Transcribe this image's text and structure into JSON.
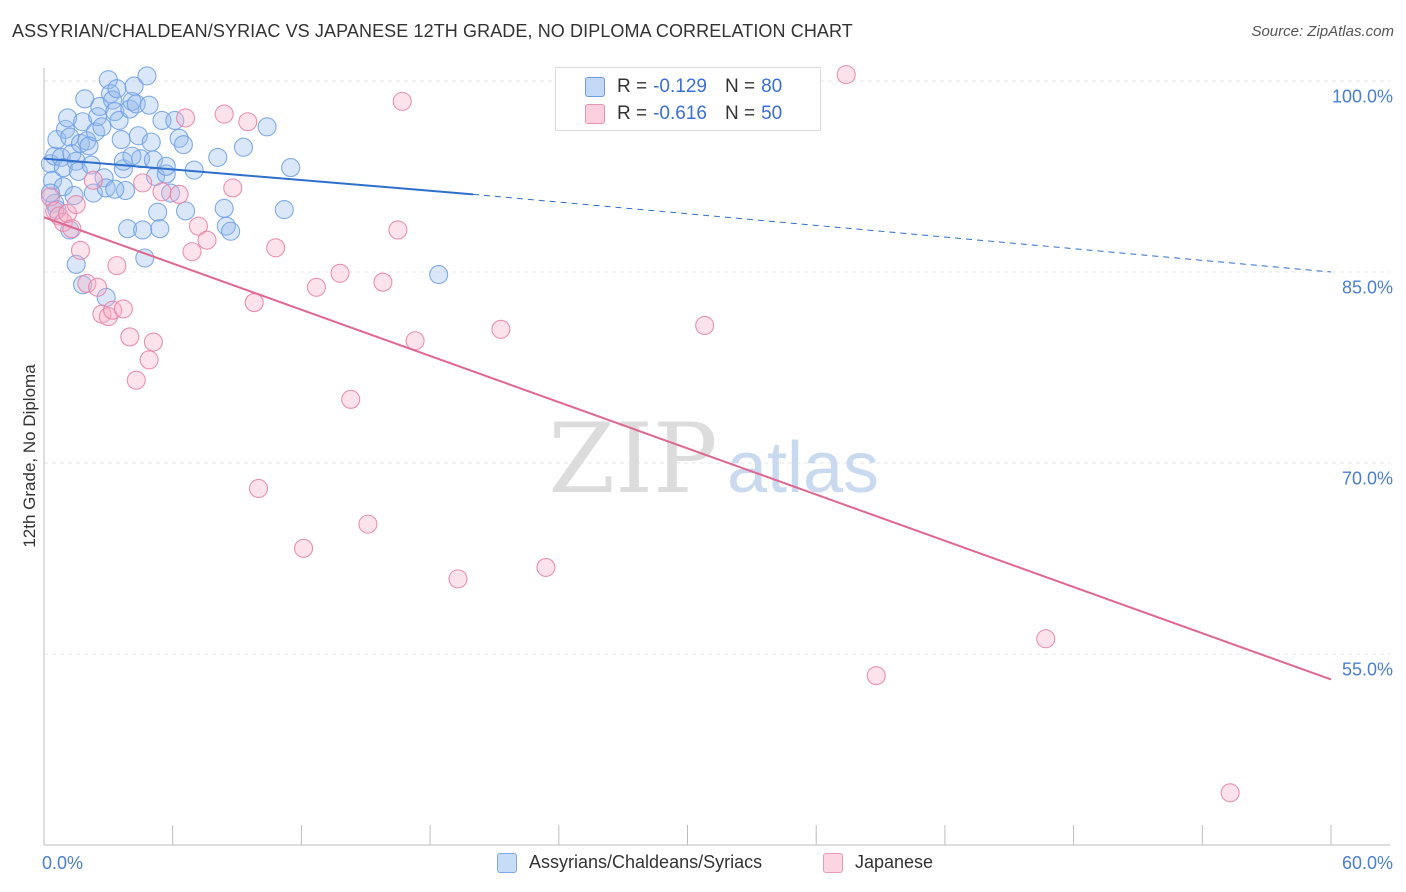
{
  "chart_data": {
    "type": "scatter",
    "title": "ASSYRIAN/CHALDEAN/SYRIAC VS JAPANESE 12TH GRADE, NO DIPLOMA CORRELATION CHART",
    "source": "Source: ZipAtlas.com",
    "ylabel": "12th Grade, No Diploma",
    "xlabel": "",
    "xlim": [
      0,
      60
    ],
    "ylim": [
      40.5,
      103
    ],
    "x_tick_labels": [
      "0.0%",
      "60.0%"
    ],
    "y_ticks": [
      {
        "value": 100,
        "label": "100.0%"
      },
      {
        "value": 85,
        "label": "85.0%"
      },
      {
        "value": 70,
        "label": "70.0%"
      },
      {
        "value": 55,
        "label": "55.0%"
      }
    ],
    "grid": true,
    "watermark": {
      "main": "ZIP",
      "sub": "atlas"
    },
    "legend_stats": [
      {
        "r_label": "R = ",
        "r_value": "-0.129",
        "n_label": "N = ",
        "n_value": "80",
        "color": "#a8c8f0",
        "border": "#5b8fdc"
      },
      {
        "r_label": "R = ",
        "r_value": "-0.616",
        "n_label": "N = ",
        "n_value": "50",
        "color": "#f6b8cb",
        "border": "#e07a9c"
      }
    ],
    "series": [
      {
        "name": "Assyrians/Chaldeans/Syriacs",
        "color": "#6b9ee6",
        "fill": "rgba(150,185,235,0.35)",
        "trend": {
          "x0": 0,
          "y0": 93.9,
          "x1": 20,
          "y1": 91.1,
          "dash_to_x": 60,
          "dash_to_y": 85.0
        },
        "points": [
          [
            0.3,
            93.5
          ],
          [
            0.4,
            92.2
          ],
          [
            0.5,
            90.4
          ],
          [
            0.5,
            94.1
          ],
          [
            0.6,
            95.4
          ],
          [
            0.8,
            94.0
          ],
          [
            0.9,
            93.2
          ],
          [
            0.9,
            91.7
          ],
          [
            1.0,
            96.2
          ],
          [
            1.1,
            97.1
          ],
          [
            1.2,
            95.6
          ],
          [
            1.3,
            94.3
          ],
          [
            1.4,
            91.0
          ],
          [
            1.5,
            93.7
          ],
          [
            1.6,
            92.9
          ],
          [
            1.7,
            95.1
          ],
          [
            1.8,
            96.8
          ],
          [
            1.9,
            98.6
          ],
          [
            2.0,
            95.3
          ],
          [
            2.1,
            94.9
          ],
          [
            2.2,
            93.4
          ],
          [
            2.3,
            91.2
          ],
          [
            2.4,
            96.0
          ],
          [
            2.5,
            97.2
          ],
          [
            2.6,
            98.0
          ],
          [
            2.7,
            96.4
          ],
          [
            2.8,
            92.4
          ],
          [
            2.9,
            91.6
          ],
          [
            3.0,
            100.1
          ],
          [
            3.1,
            99.0
          ],
          [
            3.2,
            98.5
          ],
          [
            3.3,
            97.6
          ],
          [
            3.4,
            99.4
          ],
          [
            3.5,
            96.9
          ],
          [
            3.6,
            95.4
          ],
          [
            3.7,
            93.1
          ],
          [
            3.8,
            91.4
          ],
          [
            3.9,
            88.4
          ],
          [
            4.0,
            97.8
          ],
          [
            4.1,
            98.4
          ],
          [
            4.2,
            99.6
          ],
          [
            4.3,
            98.2
          ],
          [
            4.4,
            95.7
          ],
          [
            4.5,
            93.9
          ],
          [
            4.6,
            88.3
          ],
          [
            4.7,
            86.1
          ],
          [
            4.8,
            100.4
          ],
          [
            4.9,
            98.1
          ],
          [
            5.0,
            95.2
          ],
          [
            5.1,
            93.8
          ],
          [
            5.2,
            92.5
          ],
          [
            5.3,
            89.7
          ],
          [
            5.4,
            88.4
          ],
          [
            5.5,
            96.9
          ],
          [
            5.7,
            92.7
          ],
          [
            5.9,
            91.2
          ],
          [
            6.1,
            96.9
          ],
          [
            6.3,
            95.5
          ],
          [
            6.6,
            89.8
          ],
          [
            7.0,
            93.0
          ],
          [
            8.1,
            94.0
          ],
          [
            8.4,
            90.0
          ],
          [
            8.5,
            88.6
          ],
          [
            9.3,
            94.8
          ],
          [
            10.4,
            96.4
          ],
          [
            11.2,
            89.9
          ],
          [
            11.5,
            93.2
          ],
          [
            0.3,
            91.2
          ],
          [
            0.6,
            89.9
          ],
          [
            1.2,
            88.3
          ],
          [
            1.5,
            85.6
          ],
          [
            1.8,
            84.0
          ],
          [
            2.9,
            83.0
          ],
          [
            3.7,
            93.7
          ],
          [
            4.1,
            94.1
          ],
          [
            5.7,
            93.3
          ],
          [
            8.7,
            88.2
          ],
          [
            18.4,
            84.8
          ],
          [
            3.3,
            91.5
          ],
          [
            6.5,
            95.0
          ]
        ]
      },
      {
        "name": "Japanese",
        "color": "#e77fa3",
        "fill": "rgba(245,175,198,0.35)",
        "trend": {
          "x0": 0,
          "y0": 89.3,
          "x1": 60,
          "y1": 53.0
        },
        "points": [
          [
            0.3,
            90.9
          ],
          [
            0.5,
            89.8
          ],
          [
            0.7,
            89.4
          ],
          [
            0.9,
            88.9
          ],
          [
            1.1,
            89.6
          ],
          [
            1.3,
            88.4
          ],
          [
            1.5,
            90.3
          ],
          [
            1.7,
            86.7
          ],
          [
            2.0,
            84.1
          ],
          [
            2.3,
            92.2
          ],
          [
            2.5,
            83.8
          ],
          [
            2.7,
            81.7
          ],
          [
            3.0,
            81.5
          ],
          [
            3.2,
            82.0
          ],
          [
            3.4,
            85.5
          ],
          [
            3.7,
            82.1
          ],
          [
            4.0,
            79.9
          ],
          [
            4.3,
            76.5
          ],
          [
            4.6,
            92.0
          ],
          [
            4.9,
            78.1
          ],
          [
            5.1,
            79.5
          ],
          [
            5.5,
            91.3
          ],
          [
            6.3,
            91.1
          ],
          [
            6.6,
            97.1
          ],
          [
            7.2,
            88.6
          ],
          [
            7.6,
            87.5
          ],
          [
            8.4,
            97.4
          ],
          [
            8.8,
            91.6
          ],
          [
            9.5,
            96.8
          ],
          [
            9.8,
            82.6
          ],
          [
            10.8,
            86.9
          ],
          [
            12.1,
            63.3
          ],
          [
            12.7,
            83.8
          ],
          [
            13.8,
            84.9
          ],
          [
            14.3,
            75.0
          ],
          [
            15.1,
            65.2
          ],
          [
            15.8,
            84.2
          ],
          [
            16.5,
            88.3
          ],
          [
            16.7,
            98.4
          ],
          [
            17.3,
            79.6
          ],
          [
            19.3,
            60.9
          ],
          [
            21.3,
            80.5
          ],
          [
            23.4,
            61.8
          ],
          [
            30.8,
            80.8
          ],
          [
            37.4,
            100.5
          ],
          [
            38.8,
            53.3
          ],
          [
            46.7,
            56.2
          ],
          [
            55.3,
            44.1
          ],
          [
            10.0,
            68.0
          ],
          [
            6.9,
            86.6
          ]
        ]
      }
    ]
  },
  "legend_bottom": [
    {
      "label": "Assyrians/Chaldeans/Syriacs",
      "color": "#c6dcf7",
      "border": "#7fa9e4"
    },
    {
      "label": "Japanese",
      "color": "#fbd5e1",
      "border": "#e99ab5"
    }
  ]
}
